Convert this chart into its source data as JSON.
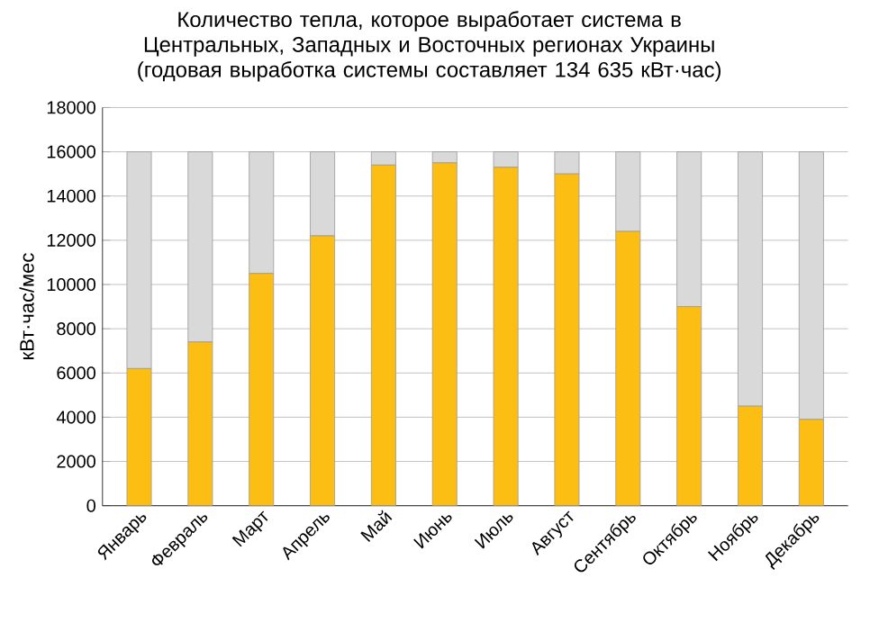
{
  "chart_data": {
    "type": "bar",
    "stacked": true,
    "title": "Количество тепла, которое выработает система в Центральных, Западных и Восточных регионах Украины (годовая выработка системы составляет 134 635 кВт·час)",
    "ylabel": "кВт·час/мес",
    "categories": [
      "Январь",
      "Февраль",
      "Март",
      "Апрель",
      "Май",
      "Июнь",
      "Июль",
      "Август",
      "Сентябрь",
      "Октябрь",
      "Ноябрь",
      "Декабрь"
    ],
    "series": [
      {
        "color": "#fcbe13",
        "values": [
          6200,
          7400,
          10500,
          12200,
          15400,
          15500,
          15300,
          15000,
          12400,
          9000,
          4500,
          3900
        ]
      },
      {
        "color": "#d9d9d9",
        "values": [
          9800,
          8600,
          5500,
          3800,
          600,
          500,
          700,
          1000,
          3600,
          7000,
          11500,
          12100
        ]
      }
    ],
    "ylim": [
      0,
      18000
    ],
    "yticks": [
      0,
      2000,
      4000,
      6000,
      8000,
      10000,
      12000,
      14000,
      16000,
      18000
    ],
    "grid": "y"
  }
}
